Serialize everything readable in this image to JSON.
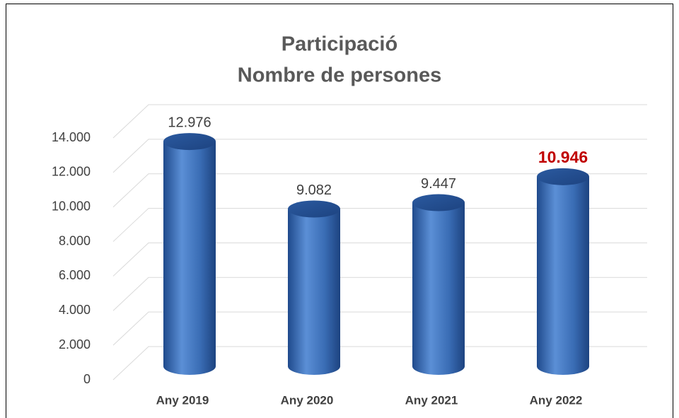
{
  "chart_data": {
    "type": "cylinder",
    "title": [
      "Participació",
      "Nombre de persones"
    ],
    "categories": [
      "Any 2019",
      "Any 2020",
      "Any 2021",
      "Any 2022"
    ],
    "values": [
      12976,
      9082,
      9447,
      10946
    ],
    "value_labels": [
      "12.976",
      "9.082",
      "9.447",
      "10.946"
    ],
    "value_label_colors": [
      "#404040",
      "#404040",
      "#404040",
      "#c00000"
    ],
    "color": "#3a6db5",
    "ylim": [
      0,
      14000
    ],
    "yticks": [
      0,
      {
        "value": 2000,
        "label": "2.000"
      },
      {
        "value": 4000,
        "label": "4.000"
      },
      {
        "value": 6000,
        "label": "6.000"
      },
      {
        "value": 8000,
        "label": "8.000"
      },
      {
        "value": 10000,
        "label": "10.000"
      },
      {
        "value": 12000,
        "label": "12.000"
      },
      {
        "value": 14000,
        "label": "14.000"
      }
    ],
    "grid": true
  }
}
